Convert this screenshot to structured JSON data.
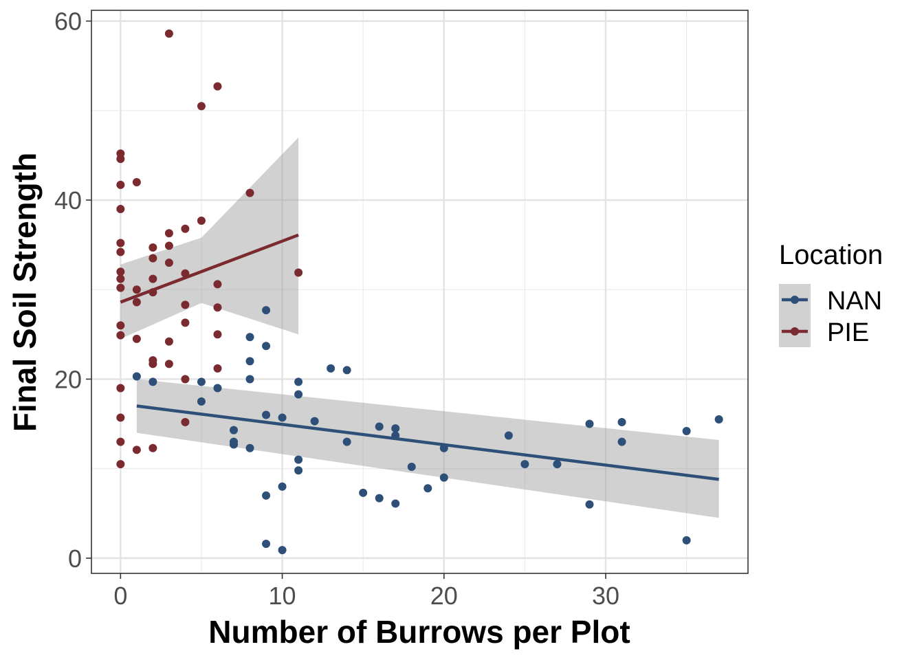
{
  "chart_data": {
    "type": "scatter",
    "title": "",
    "xlabel": "Number of Burrows per Plot",
    "ylabel": "Final Soil Strength",
    "xlim": [
      -1.8,
      38.8
    ],
    "ylim": [
      -1.7,
      61.2
    ],
    "x_ticks": [
      0,
      10,
      20,
      30
    ],
    "x_tick_labels": [
      "0",
      "10",
      "20",
      "30"
    ],
    "y_ticks": [
      0,
      20,
      40,
      60
    ],
    "y_tick_labels": [
      "0",
      "20",
      "40",
      "60"
    ],
    "grid": true,
    "legend": {
      "title": "Location",
      "position": "right"
    },
    "series": [
      {
        "name": "NAN",
        "color": "#2d4f78",
        "points": [
          [
            1,
            20.3
          ],
          [
            2,
            19.7
          ],
          [
            5,
            19.7
          ],
          [
            5,
            17.5
          ],
          [
            6,
            19.0
          ],
          [
            7,
            14.3
          ],
          [
            7,
            13.0
          ],
          [
            7,
            12.7
          ],
          [
            8,
            24.7
          ],
          [
            8,
            22.0
          ],
          [
            8,
            20.0
          ],
          [
            8,
            12.3
          ],
          [
            9,
            27.7
          ],
          [
            9,
            23.7
          ],
          [
            9,
            16.0
          ],
          [
            9,
            7.0
          ],
          [
            9,
            1.6
          ],
          [
            10,
            15.7
          ],
          [
            10,
            8.0
          ],
          [
            10,
            0.9
          ],
          [
            11,
            19.7
          ],
          [
            11,
            18.3
          ],
          [
            11,
            11.0
          ],
          [
            11,
            9.8
          ],
          [
            12,
            15.3
          ],
          [
            13,
            21.2
          ],
          [
            14,
            21.0
          ],
          [
            14,
            13.0
          ],
          [
            15,
            7.3
          ],
          [
            16,
            14.7
          ],
          [
            16,
            6.7
          ],
          [
            17,
            14.5
          ],
          [
            17,
            13.7
          ],
          [
            17,
            6.1
          ],
          [
            18,
            10.2
          ],
          [
            19,
            7.8
          ],
          [
            20,
            12.3
          ],
          [
            20,
            9.0
          ],
          [
            24,
            13.7
          ],
          [
            25,
            10.5
          ],
          [
            27,
            10.5
          ],
          [
            29,
            15.0
          ],
          [
            29,
            6.0
          ],
          [
            31,
            15.2
          ],
          [
            31,
            13.0
          ],
          [
            35,
            14.2
          ],
          [
            35,
            2.0
          ],
          [
            37,
            15.5
          ]
        ],
        "trend": {
          "x": [
            1,
            37
          ],
          "y": [
            17.0,
            8.8
          ]
        },
        "ci": {
          "x": [
            1,
            37
          ],
          "upper": [
            20.0,
            13.2
          ],
          "lower": [
            14.0,
            4.5
          ]
        }
      },
      {
        "name": "PIE",
        "color": "#7b2a2f",
        "points": [
          [
            0,
            45.2
          ],
          [
            0,
            44.6
          ],
          [
            0,
            41.7
          ],
          [
            0,
            39.0
          ],
          [
            0,
            35.2
          ],
          [
            0,
            34.2
          ],
          [
            0,
            32.0
          ],
          [
            0,
            31.2
          ],
          [
            0,
            30.2
          ],
          [
            0,
            26.0
          ],
          [
            0,
            24.9
          ],
          [
            0,
            19.0
          ],
          [
            0,
            15.7
          ],
          [
            0,
            13.0
          ],
          [
            0,
            10.5
          ],
          [
            1,
            42.0
          ],
          [
            1,
            30.0
          ],
          [
            1,
            28.6
          ],
          [
            1,
            24.5
          ],
          [
            1,
            12.1
          ],
          [
            2,
            34.7
          ],
          [
            2,
            33.5
          ],
          [
            2,
            31.2
          ],
          [
            2,
            29.7
          ],
          [
            2,
            22.1
          ],
          [
            2,
            21.7
          ],
          [
            2,
            12.3
          ],
          [
            3,
            58.6
          ],
          [
            3,
            36.3
          ],
          [
            3,
            34.9
          ],
          [
            3,
            33.0
          ],
          [
            3,
            24.2
          ],
          [
            3,
            21.7
          ],
          [
            4,
            36.8
          ],
          [
            4,
            31.8
          ],
          [
            4,
            28.3
          ],
          [
            4,
            26.3
          ],
          [
            4,
            20.0
          ],
          [
            4,
            15.2
          ],
          [
            5,
            50.5
          ],
          [
            5,
            37.7
          ],
          [
            6,
            52.7
          ],
          [
            6,
            30.6
          ],
          [
            6,
            28.0
          ],
          [
            6,
            25.0
          ],
          [
            6,
            21.2
          ],
          [
            8,
            40.8
          ],
          [
            11,
            31.9
          ]
        ],
        "trend": {
          "x": [
            0,
            11
          ],
          "y": [
            28.6,
            36.1
          ]
        },
        "ci": {
          "x": [
            0,
            5,
            11
          ],
          "upper": [
            32.8,
            35.8,
            47.0
          ],
          "lower": [
            24.5,
            28.5,
            25.0
          ]
        }
      }
    ]
  }
}
